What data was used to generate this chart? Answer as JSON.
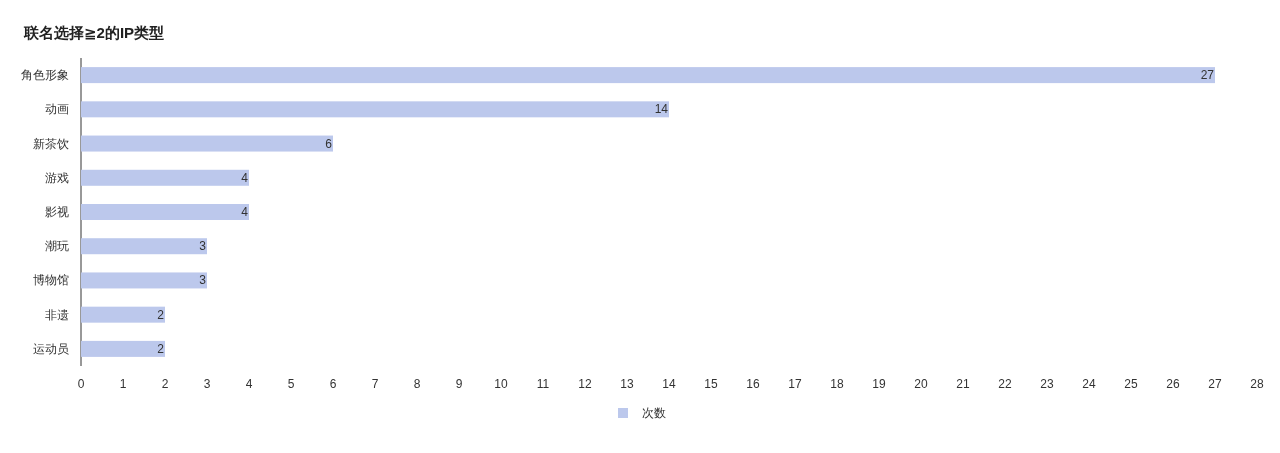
{
  "chart_data": {
    "type": "bar",
    "orientation": "horizontal",
    "title": "联名选择≧2的IP类型",
    "categories": [
      "角色形象",
      "动画",
      "新茶饮",
      "游戏",
      "影视",
      "潮玩",
      "博物馆",
      "非遗",
      "运动员"
    ],
    "series": [
      {
        "name": "次数",
        "color": "#bcc8ec",
        "values": [
          27,
          14,
          6,
          4,
          4,
          3,
          3,
          2,
          2
        ]
      }
    ],
    "xlim": [
      0,
      28
    ],
    "xticks": [
      0,
      1,
      2,
      3,
      4,
      5,
      6,
      7,
      8,
      9,
      10,
      11,
      12,
      13,
      14,
      15,
      16,
      17,
      18,
      19,
      20,
      21,
      22,
      23,
      24,
      25,
      26,
      27,
      28
    ],
    "data_labels": true,
    "legend": "bottom"
  }
}
